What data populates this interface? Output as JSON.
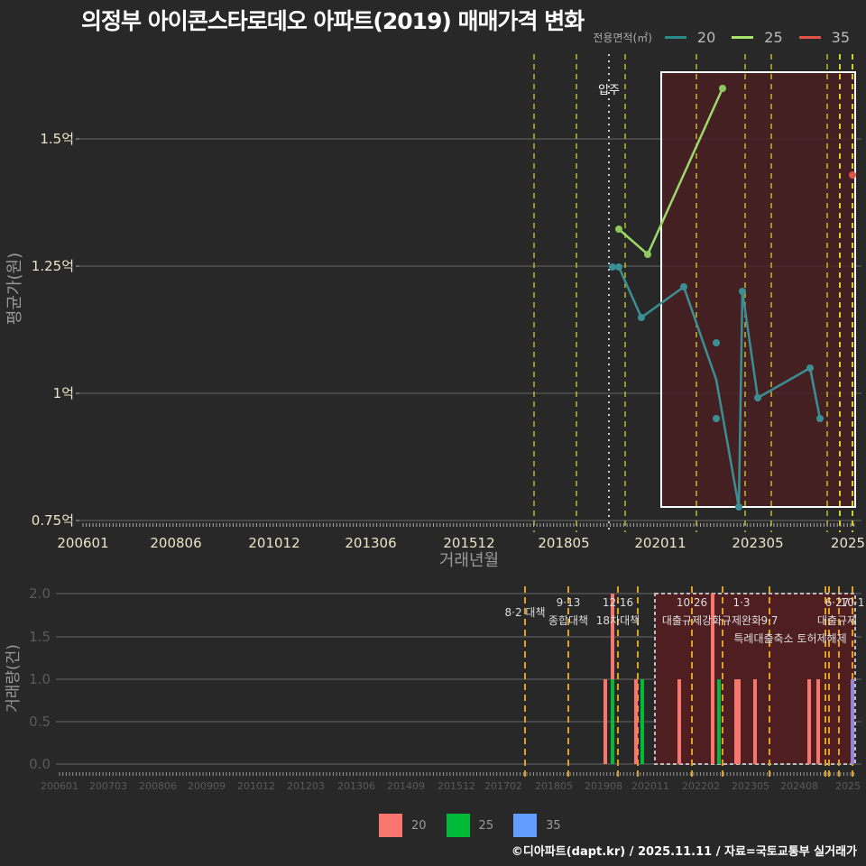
{
  "title": "의정부 아이콘스타로데오 아파트(2019) 매매가격 변화",
  "legend_top": {
    "label": "전용면적(㎡)",
    "items": [
      {
        "name": "20",
        "color": "#2a8a8a"
      },
      {
        "name": "25",
        "color": "#a6e36a"
      },
      {
        "name": "35",
        "color": "#e0534a"
      }
    ]
  },
  "legend_bottom": {
    "items": [
      {
        "name": "20",
        "color": "#f8766d"
      },
      {
        "name": "25",
        "color": "#00ba38"
      },
      {
        "name": "35",
        "color": "#619cff"
      }
    ]
  },
  "footer": "©디아파트(dapt.kr) / 2025.11.11 / 자료=국토교통부 실거래가",
  "upper": {
    "ylabel": "평균가(원)",
    "xlabel": "거래년월",
    "yticks": [
      "1.5억",
      "1.25억",
      "1억",
      "0.75억"
    ],
    "xticks": [
      "200601",
      "200806",
      "201012",
      "201306",
      "201512",
      "201805",
      "202011",
      "202305",
      "2025"
    ],
    "move_in_label": "입주"
  },
  "lower": {
    "ylabel": "거래량(건)",
    "yticks": [
      "2.0",
      "1.5",
      "1.0",
      "0.5",
      "0.0"
    ],
    "xticks": [
      "200601",
      "200703",
      "200806",
      "200909",
      "201012",
      "201203",
      "201306",
      "201409",
      "201512",
      "201702",
      "201805",
      "201908",
      "202011",
      "202202",
      "202305",
      "202408",
      "2025"
    ],
    "policy_labels": [
      {
        "date": "",
        "text": "8·2 대책"
      },
      {
        "date": "9·13",
        "text": "종합대책"
      },
      {
        "date": "12·16",
        "text": "18차대책"
      },
      {
        "date": "10·26",
        "text": "대출규제강화"
      },
      {
        "date": "1·3",
        "text": "규제완화"
      },
      {
        "date": "9·7",
        "text": "특례대출축소 토허제해제"
      },
      {
        "date": "6·27",
        "text": "대출규제"
      },
      {
        "date": "10·1",
        "text": ""
      }
    ]
  },
  "chart_data": [
    {
      "type": "line",
      "title": "의정부 아이콘스타로데오 아파트(2019) 매매가격 변화",
      "xlabel": "거래년월",
      "ylabel": "평균가(원)",
      "ylim": [
        0.75,
        1.6
      ],
      "y_unit": "억",
      "series": [
        {
          "name": "20",
          "points": [
            [
              "201908",
              1.25
            ],
            [
              "201909",
              1.25
            ],
            [
              "202002",
              1.15
            ],
            [
              "202103",
              1.21
            ],
            [
              "202108",
              1.1
            ],
            [
              "202108",
              0.95
            ],
            [
              "202203",
              0.78
            ],
            [
              "202204",
              1.2
            ],
            [
              "202209",
              0.99
            ],
            [
              "202403",
              1.05
            ],
            [
              "202405",
              0.95
            ]
          ]
        },
        {
          "name": "25",
          "points": [
            [
              "201909",
              1.32
            ],
            [
              "202005",
              1.27
            ],
            [
              "202111",
              1.6
            ]
          ]
        },
        {
          "name": "35",
          "points": [
            [
              "202510",
              1.43
            ]
          ]
        }
      ],
      "annotations": [
        "입주 (201908)"
      ],
      "highlight_region": [
        "202011",
        "202510"
      ]
    },
    {
      "type": "bar",
      "xlabel": "",
      "ylabel": "거래량(건)",
      "ylim": [
        0,
        2
      ],
      "series": [
        {
          "name": "20",
          "points": [
            [
              "201907",
              1
            ],
            [
              "201908",
              2
            ],
            [
              "201910",
              1
            ],
            [
              "202101",
              1
            ],
            [
              "202109",
              2
            ],
            [
              "202111",
              1
            ],
            [
              "202112",
              1
            ],
            [
              "202205",
              1
            ],
            [
              "202211",
              1
            ],
            [
              "202402",
              1
            ],
            [
              "202404",
              1
            ]
          ]
        },
        {
          "name": "25",
          "points": [
            [
              "201909",
              1
            ],
            [
              "201911",
              1
            ],
            [
              "202111",
              1
            ]
          ]
        },
        {
          "name": "35",
          "points": [
            [
              "202510",
              1
            ]
          ]
        }
      ]
    }
  ]
}
